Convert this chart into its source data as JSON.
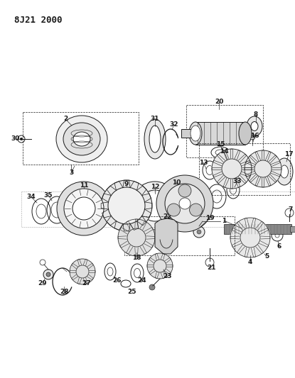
{
  "title": "8J21 2000",
  "bg_color": "#ffffff",
  "line_color": "#1a1a1a",
  "figsize": [
    4.15,
    5.33
  ],
  "dpi": 100
}
